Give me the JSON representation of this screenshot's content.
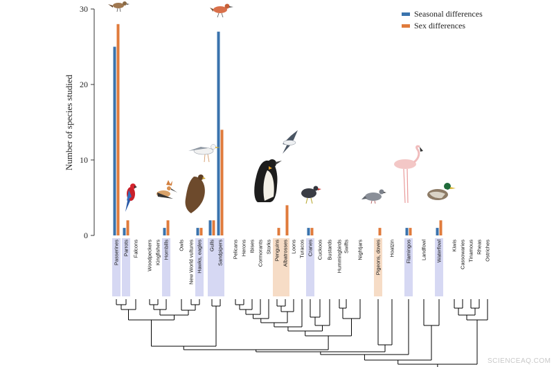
{
  "colors": {
    "seasonal": "#3a73ad",
    "sex": "#e07b3c",
    "axis": "#333333",
    "tree": "#000000",
    "highlight_blue": "#d6d8f3",
    "highlight_orange": "#f6dcc6"
  },
  "legend": {
    "seasonal": "Seasonal differences",
    "sex": "Sex differences"
  },
  "watermark": "SCIENCEAQ.COM",
  "chart_data": {
    "type": "bar",
    "ylabel": "Number of species studied",
    "ylim": [
      0,
      30
    ],
    "yticks": [
      0,
      10,
      20,
      30
    ],
    "legend_position": "top-right",
    "categories": [
      "Passerines",
      "Parrots",
      "Falcons",
      "Woodpeckers",
      "Kingfishers",
      "Hornbills",
      "Owls",
      "New World vultures",
      "Hawks, eagles",
      "Gulls",
      "Sandpipers",
      "Pelicans",
      "Herons",
      "Ibises",
      "Cormorants",
      "Storks",
      "Penguins",
      "Albatrosses",
      "Loons",
      "Turacos",
      "Cranes",
      "Cuckoos",
      "Bustards",
      "Hummingbirds",
      "Swifts",
      "Nightjars",
      "Pigeons, doves",
      "Hoatzin",
      "Flamingos",
      "Landfowl",
      "Waterfowl",
      "Kiwis",
      "Cassowaries",
      "Tinamous",
      "Rheas",
      "Ostriches"
    ],
    "highlight": [
      "blue",
      "blue",
      "none",
      "none",
      "none",
      "blue",
      "none",
      "none",
      "blue",
      "blue",
      "blue",
      "none",
      "none",
      "none",
      "none",
      "none",
      "orange",
      "orange",
      "none",
      "none",
      "blue",
      "none",
      "none",
      "none",
      "none",
      "none",
      "orange",
      "none",
      "blue",
      "none",
      "blue",
      "none",
      "none",
      "none",
      "none",
      "none"
    ],
    "series": [
      {
        "name": "Seasonal differences",
        "values": [
          25,
          1,
          0,
          0,
          0,
          1,
          0,
          0,
          1,
          2,
          27,
          0,
          0,
          0,
          0,
          0,
          0,
          0,
          0,
          0,
          1,
          0,
          0,
          0,
          0,
          0,
          0,
          0,
          1,
          0,
          1,
          0,
          0,
          0,
          0,
          0
        ]
      },
      {
        "name": "Sex differences",
        "values": [
          28,
          2,
          0,
          0,
          0,
          2,
          0,
          0,
          1,
          2,
          14,
          0,
          0,
          0,
          0,
          0,
          1,
          4,
          0,
          0,
          1,
          0,
          0,
          0,
          0,
          0,
          1,
          0,
          1,
          0,
          2,
          0,
          0,
          0,
          0,
          0
        ]
      }
    ]
  }
}
